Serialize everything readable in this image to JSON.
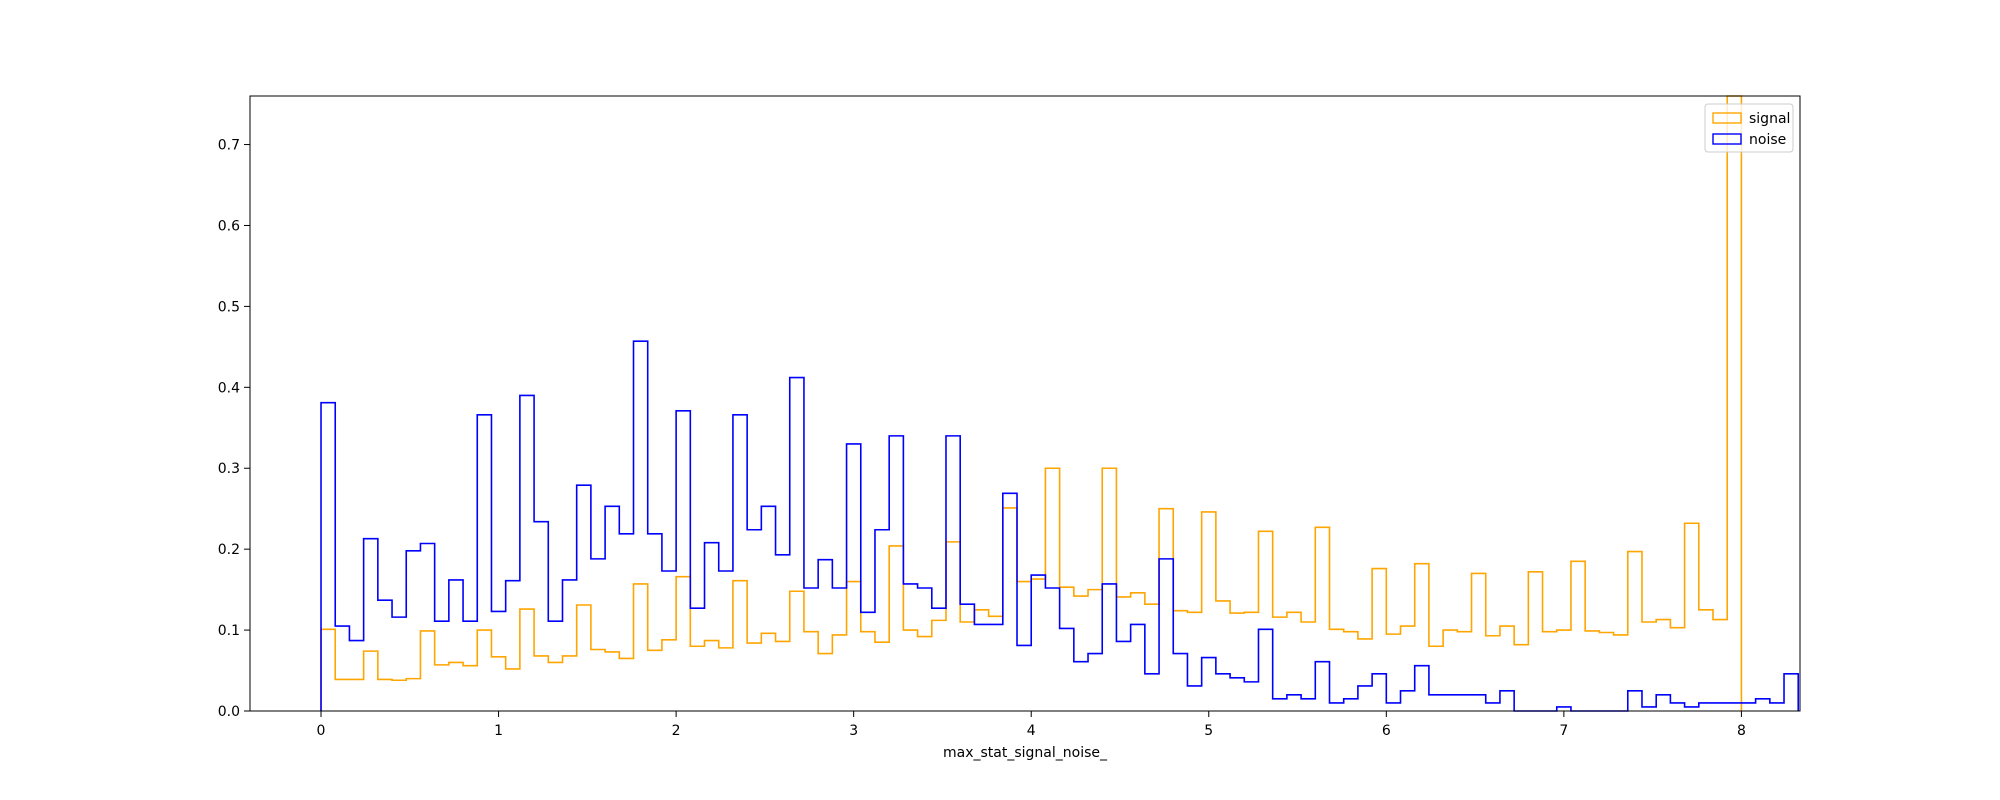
{
  "chart_data": {
    "type": "step-histogram",
    "xlabel": "max_stat_signal_noise_",
    "ylabel": "",
    "xlim": [
      -0.4,
      8.33
    ],
    "ylim": [
      0,
      0.76
    ],
    "xticks": [
      0,
      1,
      2,
      3,
      4,
      5,
      6,
      7,
      8
    ],
    "yticks": [
      0.0,
      0.1,
      0.2,
      0.3,
      0.4,
      0.5,
      0.6,
      0.7
    ],
    "ytick_labels": [
      "0.0",
      "0.1",
      "0.2",
      "0.3",
      "0.4",
      "0.5",
      "0.6",
      "0.7"
    ],
    "grid": false,
    "legend_position": "top-right",
    "bin_start": 0,
    "bin_width": 0.08,
    "series": [
      {
        "name": "signal",
        "color": "#ffa500",
        "values": [
          0.101,
          0.039,
          0.039,
          0.074,
          0.039,
          0.038,
          0.04,
          0.099,
          0.057,
          0.06,
          0.056,
          0.1,
          0.067,
          0.052,
          0.126,
          0.068,
          0.06,
          0.068,
          0.131,
          0.076,
          0.073,
          0.065,
          0.157,
          0.075,
          0.088,
          0.166,
          0.08,
          0.087,
          0.078,
          0.161,
          0.084,
          0.096,
          0.086,
          0.148,
          0.098,
          0.071,
          0.094,
          0.16,
          0.098,
          0.085,
          0.204,
          0.1,
          0.092,
          0.112,
          0.209,
          0.11,
          0.125,
          0.117,
          0.251,
          0.16,
          0.163,
          0.3,
          0.153,
          0.142,
          0.15,
          0.3,
          0.141,
          0.146,
          0.132,
          0.25,
          0.124,
          0.122,
          0.246,
          0.136,
          0.121,
          0.122,
          0.222,
          0.116,
          0.122,
          0.11,
          0.227,
          0.101,
          0.098,
          0.089,
          0.176,
          0.095,
          0.105,
          0.182,
          0.08,
          0.1,
          0.098,
          0.17,
          0.093,
          0.105,
          0.082,
          0.172,
          0.098,
          0.1,
          0.185,
          0.099,
          0.097,
          0.094,
          0.197,
          0.11,
          0.113,
          0.103,
          0.232,
          0.125,
          0.113,
          0.76
        ]
      },
      {
        "name": "noise",
        "color": "#0000ff",
        "values": [
          0.381,
          0.105,
          0.087,
          0.213,
          0.137,
          0.116,
          0.198,
          0.207,
          0.111,
          0.162,
          0.111,
          0.366,
          0.123,
          0.161,
          0.39,
          0.234,
          0.111,
          0.162,
          0.279,
          0.188,
          0.253,
          0.219,
          0.457,
          0.219,
          0.173,
          0.371,
          0.127,
          0.208,
          0.173,
          0.366,
          0.224,
          0.253,
          0.193,
          0.412,
          0.152,
          0.187,
          0.152,
          0.33,
          0.122,
          0.224,
          0.34,
          0.157,
          0.152,
          0.127,
          0.34,
          0.132,
          0.107,
          0.107,
          0.269,
          0.081,
          0.168,
          0.152,
          0.102,
          0.061,
          0.071,
          0.157,
          0.086,
          0.107,
          0.046,
          0.188,
          0.071,
          0.031,
          0.066,
          0.046,
          0.041,
          0.036,
          0.101,
          0.015,
          0.02,
          0.015,
          0.061,
          0.01,
          0.015,
          0.031,
          0.046,
          0.01,
          0.025,
          0.056,
          0.02,
          0.02,
          0.02,
          0.02,
          0.01,
          0.025,
          0.0,
          0.0,
          0.0,
          0.005,
          0.0,
          0.0,
          0.0,
          0.0,
          0.025,
          0.005,
          0.02,
          0.01,
          0.005,
          0.01,
          0.01,
          0.01,
          0.01,
          0.015,
          0.01,
          0.046
        ]
      }
    ]
  }
}
